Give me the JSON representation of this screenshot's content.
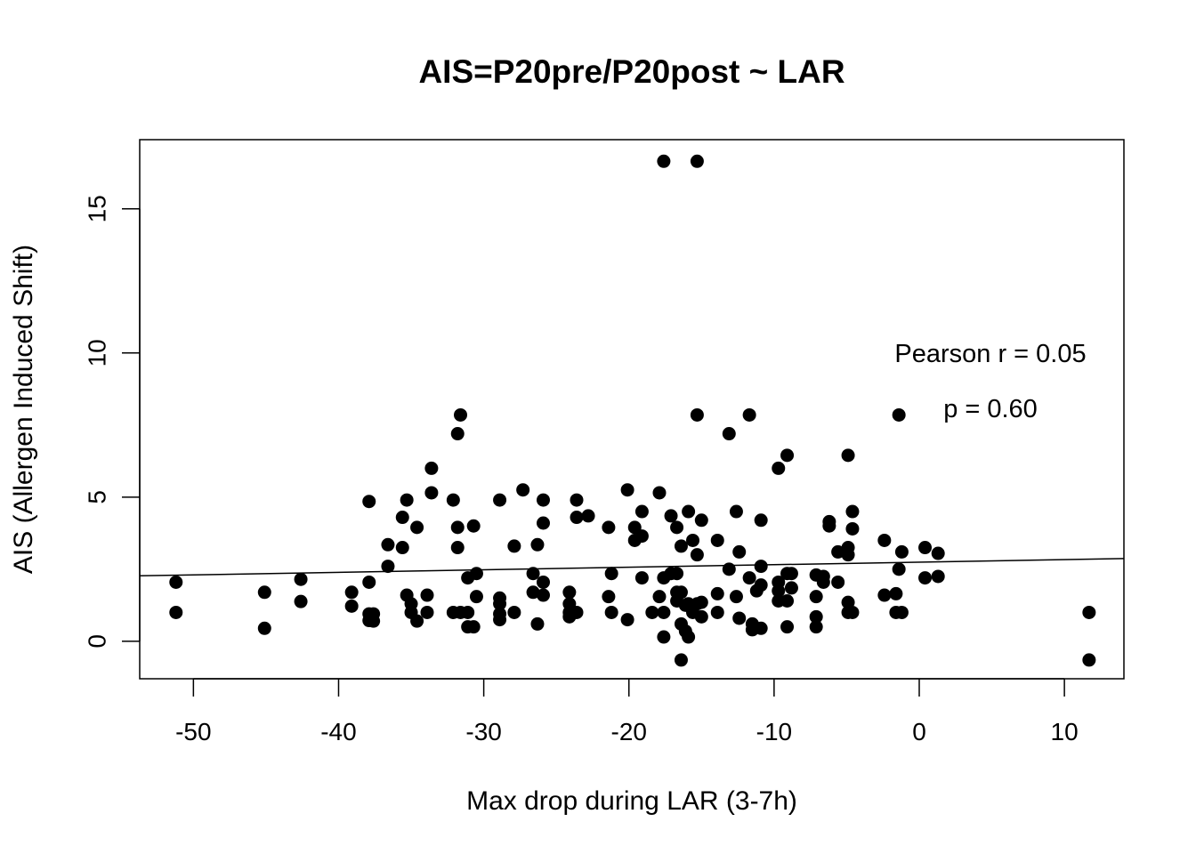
{
  "chart_data": {
    "type": "scatter",
    "title": "AIS=P20pre/P20post ~ LAR",
    "xlabel": "Max drop during LAR (3-7h)",
    "ylabel": "AIS (Allergen Induced Shift)",
    "xlim": [
      -53.7,
      14.1
    ],
    "ylim": [
      -1.3,
      17.4
    ],
    "x_ticks": [
      -50,
      -40,
      -30,
      -20,
      -10,
      0,
      10
    ],
    "x_tick_labels": [
      "-50",
      "-40",
      "-30",
      "-20",
      "-10",
      "0",
      "10"
    ],
    "y_ticks": [
      0,
      5,
      10,
      15
    ],
    "y_tick_labels": [
      "0",
      "5",
      "10",
      "15"
    ],
    "annotations": [
      "Pearson r = 0.05",
      "p = 0.60"
    ],
    "colors": {
      "points": "#000000",
      "line": "#000000"
    },
    "regression_line": {
      "x": [
        -53.7,
        14.1
      ],
      "y": [
        2.27,
        2.87
      ]
    },
    "points": [
      [
        -51.2,
        2.05
      ],
      [
        -51.2,
        1.0
      ],
      [
        -45.1,
        1.7
      ],
      [
        -45.1,
        0.45
      ],
      [
        -42.6,
        2.15
      ],
      [
        -42.6,
        1.38
      ],
      [
        -39.1,
        1.7
      ],
      [
        -39.1,
        1.22
      ],
      [
        -37.9,
        4.85
      ],
      [
        -37.9,
        2.05
      ],
      [
        -37.9,
        0.95
      ],
      [
        -37.9,
        0.72
      ],
      [
        -37.6,
        0.95
      ],
      [
        -37.6,
        0.7
      ],
      [
        -36.6,
        3.35
      ],
      [
        -36.6,
        2.6
      ],
      [
        -35.6,
        4.3
      ],
      [
        -35.6,
        3.25
      ],
      [
        -35.3,
        4.9
      ],
      [
        -35.3,
        1.6
      ],
      [
        -35.0,
        1.3
      ],
      [
        -35.0,
        1.0
      ],
      [
        -34.6,
        3.95
      ],
      [
        -34.6,
        0.7
      ],
      [
        -33.9,
        1.6
      ],
      [
        -33.9,
        1.0
      ],
      [
        -33.6,
        6.0
      ],
      [
        -33.6,
        5.15
      ],
      [
        -32.1,
        4.9
      ],
      [
        -32.1,
        1.0
      ],
      [
        -31.8,
        7.2
      ],
      [
        -31.8,
        3.95
      ],
      [
        -31.8,
        3.25
      ],
      [
        -31.6,
        7.85
      ],
      [
        -31.6,
        1.0
      ],
      [
        -31.1,
        2.2
      ],
      [
        -31.1,
        1.0
      ],
      [
        -31.1,
        0.5
      ],
      [
        -30.7,
        4.0
      ],
      [
        -30.7,
        0.5
      ],
      [
        -30.5,
        2.35
      ],
      [
        -30.5,
        1.55
      ],
      [
        -28.9,
        4.9
      ],
      [
        -28.9,
        1.5
      ],
      [
        -28.9,
        1.3
      ],
      [
        -28.9,
        0.95
      ],
      [
        -28.9,
        0.75
      ],
      [
        -27.9,
        3.3
      ],
      [
        -27.9,
        1.0
      ],
      [
        -27.3,
        5.25
      ],
      [
        -26.6,
        2.35
      ],
      [
        -26.6,
        1.7
      ],
      [
        -26.3,
        3.35
      ],
      [
        -26.3,
        0.6
      ],
      [
        -25.9,
        4.9
      ],
      [
        -25.9,
        4.1
      ],
      [
        -25.9,
        2.05
      ],
      [
        -25.9,
        1.6
      ],
      [
        -24.1,
        1.7
      ],
      [
        -24.1,
        1.3
      ],
      [
        -24.1,
        1.0
      ],
      [
        -24.1,
        0.85
      ],
      [
        -23.6,
        4.9
      ],
      [
        -23.6,
        4.3
      ],
      [
        -23.6,
        1.0
      ],
      [
        -22.8,
        4.35
      ],
      [
        -21.4,
        3.95
      ],
      [
        -21.4,
        1.55
      ],
      [
        -21.2,
        2.35
      ],
      [
        -21.2,
        1.0
      ],
      [
        -20.1,
        5.25
      ],
      [
        -20.1,
        0.75
      ],
      [
        -19.6,
        3.95
      ],
      [
        -19.6,
        3.5
      ],
      [
        -19.1,
        4.5
      ],
      [
        -19.1,
        3.65
      ],
      [
        -19.1,
        2.2
      ],
      [
        -18.4,
        1.0
      ],
      [
        -17.9,
        5.15
      ],
      [
        -17.9,
        1.55
      ],
      [
        -17.6,
        16.65
      ],
      [
        -17.6,
        2.2
      ],
      [
        -17.6,
        1.0
      ],
      [
        -17.6,
        0.15
      ],
      [
        -17.1,
        4.35
      ],
      [
        -17.1,
        2.35
      ],
      [
        -16.7,
        3.95
      ],
      [
        -16.7,
        2.35
      ],
      [
        -16.7,
        1.7
      ],
      [
        -16.7,
        1.4
      ],
      [
        -16.4,
        3.3
      ],
      [
        -16.4,
        1.7
      ],
      [
        -16.4,
        0.6
      ],
      [
        -16.4,
        -0.65
      ],
      [
        -16.1,
        1.25
      ],
      [
        -16.1,
        0.35
      ],
      [
        -15.9,
        4.5
      ],
      [
        -15.9,
        1.3
      ],
      [
        -15.9,
        0.15
      ],
      [
        -15.6,
        3.5
      ],
      [
        -15.6,
        1.0
      ],
      [
        -15.3,
        16.65
      ],
      [
        -15.3,
        7.85
      ],
      [
        -15.3,
        3.0
      ],
      [
        -15.3,
        1.3
      ],
      [
        -15.0,
        4.2
      ],
      [
        -15.0,
        1.35
      ],
      [
        -15.0,
        0.85
      ],
      [
        -13.9,
        3.5
      ],
      [
        -13.9,
        1.65
      ],
      [
        -13.9,
        1.0
      ],
      [
        -13.1,
        7.2
      ],
      [
        -13.1,
        2.5
      ],
      [
        -12.6,
        4.5
      ],
      [
        -12.6,
        1.55
      ],
      [
        -12.4,
        3.1
      ],
      [
        -12.4,
        0.8
      ],
      [
        -11.7,
        7.85
      ],
      [
        -11.7,
        2.2
      ],
      [
        -11.5,
        0.6
      ],
      [
        -11.5,
        0.4
      ],
      [
        -11.2,
        1.75
      ],
      [
        -10.9,
        4.2
      ],
      [
        -10.9,
        2.6
      ],
      [
        -10.9,
        1.95
      ],
      [
        -10.9,
        0.45
      ],
      [
        -9.7,
        6.0
      ],
      [
        -9.7,
        2.05
      ],
      [
        -9.7,
        1.75
      ],
      [
        -9.7,
        1.4
      ],
      [
        -9.1,
        6.45
      ],
      [
        -9.1,
        2.35
      ],
      [
        -9.1,
        1.4
      ],
      [
        -9.1,
        0.5
      ],
      [
        -8.8,
        2.35
      ],
      [
        -8.8,
        1.85
      ],
      [
        -7.1,
        2.3
      ],
      [
        -7.1,
        1.55
      ],
      [
        -7.1,
        0.85
      ],
      [
        -7.1,
        0.5
      ],
      [
        -6.6,
        2.25
      ],
      [
        -6.6,
        2.05
      ],
      [
        -6.2,
        4.15
      ],
      [
        -6.2,
        4.0
      ],
      [
        -5.6,
        3.1
      ],
      [
        -5.6,
        2.05
      ],
      [
        -4.9,
        6.45
      ],
      [
        -4.9,
        3.25
      ],
      [
        -4.9,
        3.0
      ],
      [
        -4.9,
        1.35
      ],
      [
        -4.9,
        1.0
      ],
      [
        -4.6,
        4.5
      ],
      [
        -4.6,
        3.9
      ],
      [
        -4.6,
        1.0
      ],
      [
        -2.4,
        3.5
      ],
      [
        -2.4,
        1.6
      ],
      [
        -1.6,
        1.65
      ],
      [
        -1.6,
        1.0
      ],
      [
        -1.4,
        7.85
      ],
      [
        -1.4,
        2.5
      ],
      [
        -1.2,
        3.1
      ],
      [
        -1.2,
        1.0
      ],
      [
        0.4,
        3.25
      ],
      [
        0.4,
        2.2
      ],
      [
        1.3,
        3.05
      ],
      [
        1.3,
        2.25
      ],
      [
        11.7,
        1.0
      ],
      [
        11.7,
        -0.65
      ]
    ]
  }
}
